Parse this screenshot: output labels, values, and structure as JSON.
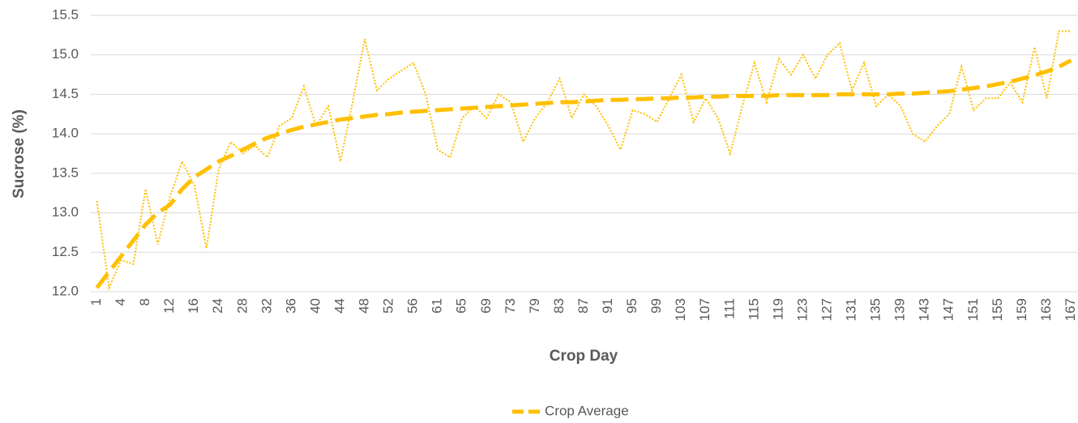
{
  "chart_data": {
    "type": "line",
    "x_label": "Crop Day",
    "y_label": "Sucrose (%)",
    "categories": [
      1,
      null,
      4,
      null,
      8,
      null,
      12,
      null,
      16,
      null,
      24,
      null,
      28,
      null,
      32,
      null,
      36,
      null,
      40,
      null,
      44,
      null,
      48,
      null,
      52,
      null,
      56,
      null,
      61,
      null,
      65,
      null,
      69,
      null,
      73,
      null,
      79,
      null,
      83,
      null,
      87,
      null,
      91,
      null,
      95,
      null,
      99,
      null,
      103,
      null,
      107,
      null,
      111,
      null,
      115,
      null,
      119,
      null,
      123,
      null,
      127,
      null,
      131,
      null,
      135,
      null,
      139,
      null,
      143,
      null,
      147,
      null,
      151,
      null,
      155,
      null,
      159,
      null,
      163,
      null,
      167
    ],
    "series": [
      {
        "color": "#FFC000",
        "style": "dotted",
        "values": [
          13.15,
          12.05,
          12.4,
          12.35,
          13.3,
          12.6,
          13.2,
          13.65,
          13.35,
          12.55,
          13.55,
          13.9,
          13.75,
          13.85,
          13.7,
          14.1,
          14.2,
          14.6,
          14.1,
          14.35,
          13.65,
          14.4,
          15.2,
          14.55,
          14.7,
          14.8,
          14.9,
          14.5,
          13.8,
          13.7,
          14.2,
          14.35,
          14.2,
          14.5,
          14.4,
          13.9,
          14.2,
          14.4,
          14.7,
          14.2,
          14.5,
          14.35,
          14.1,
          13.8,
          14.3,
          14.25,
          14.15,
          14.45,
          14.75,
          14.15,
          14.45,
          14.2,
          13.75,
          14.35,
          14.9,
          14.4,
          14.95,
          14.75,
          15.0,
          14.7,
          15.0,
          15.15,
          14.55,
          14.9,
          14.35,
          14.5,
          14.35,
          14.0,
          13.9,
          14.1,
          14.25,
          14.85,
          14.3,
          14.45,
          14.45,
          14.65,
          14.4,
          15.1,
          14.45,
          15.3,
          15.3
        ]
      },
      {
        "name": "Crop Average",
        "color": "#FFC000",
        "style": "dashed",
        "values": [
          12.05,
          12.25,
          12.45,
          12.65,
          12.85,
          13.0,
          13.1,
          13.3,
          13.45,
          13.55,
          13.65,
          13.72,
          13.8,
          13.88,
          13.95,
          14.0,
          14.05,
          14.09,
          14.12,
          14.15,
          14.18,
          14.2,
          14.22,
          14.24,
          14.25,
          14.27,
          14.28,
          14.29,
          14.3,
          14.31,
          14.32,
          14.33,
          14.34,
          14.35,
          14.36,
          14.37,
          14.38,
          14.39,
          14.4,
          14.4,
          14.41,
          14.42,
          14.43,
          14.43,
          14.44,
          14.44,
          14.45,
          14.45,
          14.46,
          14.46,
          14.47,
          14.47,
          14.48,
          14.48,
          14.48,
          14.48,
          14.49,
          14.49,
          14.49,
          14.49,
          14.49,
          14.5,
          14.5,
          14.5,
          14.5,
          14.5,
          14.51,
          14.51,
          14.52,
          14.53,
          14.54,
          14.56,
          14.58,
          14.6,
          14.63,
          14.66,
          14.7,
          14.74,
          14.79,
          14.85,
          14.93
        ]
      }
    ],
    "ylim": [
      12,
      15.5
    ],
    "yticks": [
      {
        "value": 12,
        "label": "12.0"
      },
      12.5,
      {
        "value": 13,
        "label": "13.0"
      },
      13.5,
      {
        "value": 14,
        "label": "14.0"
      },
      14.5,
      {
        "value": 15,
        "label": "15.0"
      },
      15.5
    ],
    "grid": true,
    "legend": "bottom"
  }
}
